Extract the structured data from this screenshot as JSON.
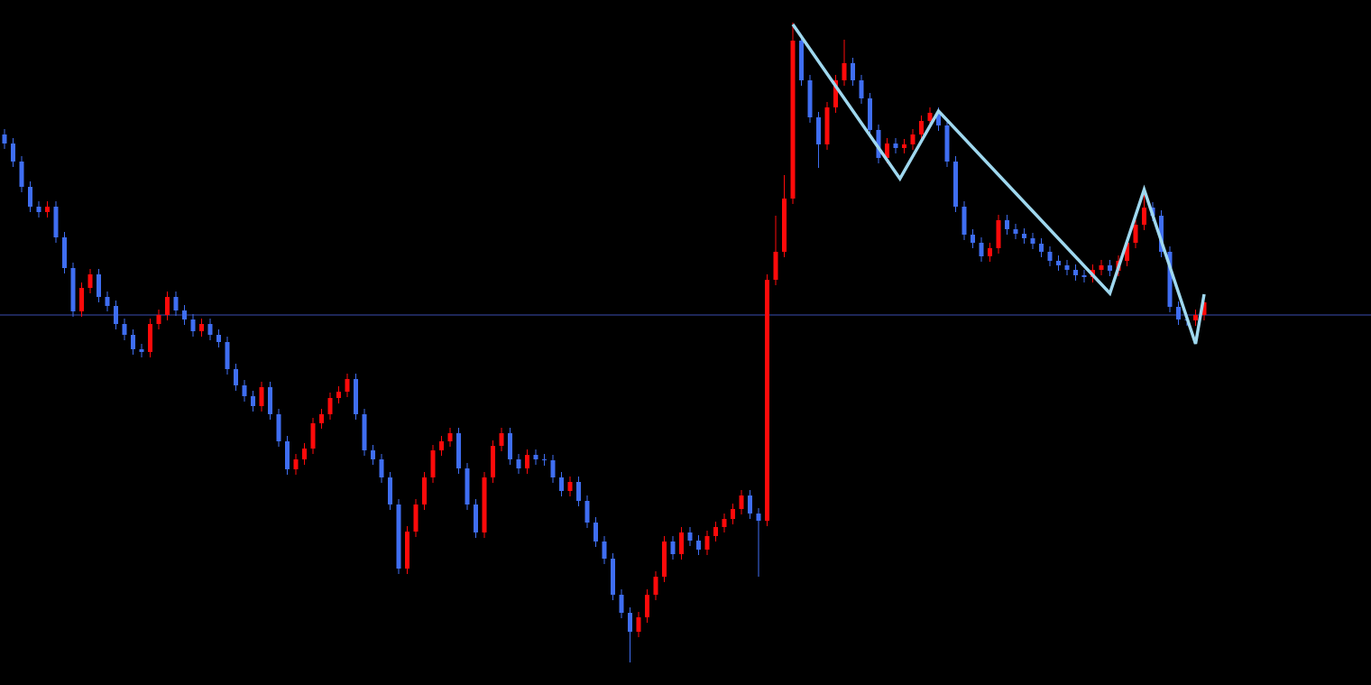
{
  "chart_data": {
    "type": "candlestick",
    "ylim": [
      0,
      759
    ],
    "up_color": "#ff0a0a",
    "down_color": "#3f6ef2",
    "categories": [
      null,
      null,
      null,
      null,
      null,
      null,
      null,
      null,
      null,
      null,
      null,
      null,
      null,
      null,
      null,
      null,
      null,
      null,
      null,
      null,
      null,
      null,
      null,
      null,
      null,
      null,
      null,
      null,
      null,
      null,
      null,
      null,
      null,
      null,
      null,
      null,
      null,
      null,
      null,
      null,
      null,
      null,
      null,
      null,
      null,
      null,
      null,
      null,
      null,
      null,
      null,
      null,
      null,
      null,
      null,
      null,
      null,
      null,
      null,
      null,
      null,
      null,
      null,
      null,
      null,
      null,
      null,
      null,
      null,
      null,
      null,
      null,
      null,
      null,
      null,
      null,
      null,
      null,
      null,
      null,
      null,
      null,
      null,
      null,
      null,
      null,
      null,
      null,
      null,
      null,
      null,
      null,
      null,
      null,
      null,
      null,
      null,
      null,
      null,
      null,
      null,
      null,
      null,
      null,
      null,
      null,
      null,
      null,
      null,
      null,
      null,
      null,
      null,
      null,
      null,
      null,
      null,
      null,
      null,
      null,
      null,
      null,
      null,
      null,
      null,
      null,
      null,
      null,
      null,
      null,
      null,
      null,
      null,
      null,
      null,
      null,
      null,
      null,
      null,
      null,
      null
    ],
    "open": [
      610,
      600,
      580,
      552,
      530,
      524,
      530,
      496,
      462,
      414,
      440,
      455,
      430,
      420,
      400,
      388,
      372,
      369,
      400,
      410,
      430,
      415,
      405,
      392,
      400,
      388,
      380,
      350,
      332,
      320,
      309,
      330,
      300,
      270,
      239,
      250,
      262,
      290,
      300,
      318,
      325,
      339,
      300,
      260,
      250,
      230,
      200,
      129,
      170,
      200,
      230,
      260,
      270,
      279,
      240,
      200,
      169,
      230,
      265,
      279,
      250,
      240,
      255,
      250,
      249,
      230,
      215,
      225,
      204,
      180,
      159,
      140,
      100,
      80,
      59,
      75,
      100,
      120,
      159,
      145,
      169,
      160,
      150,
      165,
      175,
      184,
      195,
      210,
      190,
      182,
      449,
      480,
      539,
      714,
      670,
      629,
      599,
      640,
      670,
      689,
      670,
      650,
      615,
      584,
      600,
      595,
      599,
      610,
      625,
      634,
      620,
      580,
      530,
      499,
      490,
      475,
      484,
      515,
      505,
      500,
      495,
      489,
      480,
      470,
      465,
      460,
      454,
      452,
      460,
      465,
      459,
      470,
      490,
      510,
      529,
      520,
      480,
      419,
      405,
      404,
      410
    ],
    "high": [
      616,
      606,
      586,
      558,
      536,
      536,
      536,
      502,
      468,
      446,
      461,
      461,
      436,
      426,
      406,
      394,
      378,
      406,
      416,
      436,
      436,
      421,
      411,
      406,
      406,
      394,
      386,
      356,
      338,
      326,
      336,
      336,
      306,
      276,
      256,
      268,
      296,
      306,
      324,
      331,
      345,
      345,
      306,
      266,
      256,
      236,
      206,
      176,
      206,
      236,
      266,
      276,
      285,
      285,
      246,
      206,
      236,
      271,
      285,
      285,
      256,
      261,
      261,
      256,
      255,
      236,
      231,
      231,
      210,
      186,
      165,
      146,
      106,
      86,
      81,
      106,
      126,
      165,
      165,
      175,
      175,
      166,
      171,
      181,
      190,
      201,
      216,
      216,
      196,
      455,
      520,
      565,
      734,
      720,
      676,
      635,
      646,
      676,
      715,
      695,
      676,
      656,
      621,
      606,
      606,
      605,
      616,
      631,
      640,
      640,
      626,
      586,
      536,
      505,
      496,
      490,
      521,
      521,
      511,
      506,
      501,
      495,
      486,
      476,
      471,
      466,
      460,
      466,
      471,
      471,
      476,
      496,
      516,
      545,
      535,
      526,
      486,
      425,
      411,
      416,
      430
    ],
    "low": [
      594,
      574,
      546,
      524,
      518,
      518,
      490,
      456,
      408,
      408,
      434,
      424,
      414,
      394,
      382,
      366,
      363,
      363,
      394,
      404,
      409,
      399,
      386,
      386,
      382,
      374,
      344,
      326,
      314,
      303,
      303,
      294,
      264,
      233,
      233,
      244,
      256,
      284,
      294,
      312,
      319,
      294,
      254,
      244,
      224,
      194,
      123,
      123,
      164,
      194,
      224,
      254,
      264,
      234,
      194,
      163,
      163,
      224,
      259,
      244,
      234,
      234,
      244,
      243,
      224,
      209,
      209,
      198,
      174,
      153,
      134,
      94,
      74,
      25,
      53,
      69,
      94,
      114,
      139,
      139,
      154,
      144,
      144,
      159,
      169,
      178,
      189,
      184,
      120,
      176,
      443,
      474,
      533,
      664,
      623,
      573,
      593,
      634,
      664,
      664,
      644,
      609,
      578,
      578,
      589,
      589,
      593,
      604,
      619,
      614,
      574,
      524,
      493,
      484,
      469,
      469,
      478,
      499,
      494,
      489,
      483,
      474,
      464,
      459,
      454,
      448,
      446,
      446,
      454,
      453,
      453,
      464,
      484,
      504,
      514,
      474,
      413,
      399,
      398,
      398,
      404
    ],
    "close": [
      600,
      580,
      552,
      530,
      524,
      530,
      496,
      462,
      414,
      440,
      455,
      430,
      420,
      400,
      388,
      372,
      369,
      400,
      410,
      430,
      415,
      405,
      392,
      400,
      388,
      380,
      350,
      332,
      320,
      309,
      330,
      300,
      270,
      239,
      250,
      262,
      290,
      300,
      318,
      325,
      339,
      300,
      260,
      250,
      230,
      200,
      129,
      170,
      200,
      230,
      260,
      270,
      279,
      240,
      200,
      169,
      230,
      265,
      279,
      250,
      240,
      255,
      250,
      249,
      230,
      215,
      225,
      204,
      180,
      159,
      140,
      100,
      80,
      59,
      75,
      100,
      120,
      159,
      145,
      169,
      160,
      150,
      165,
      175,
      184,
      195,
      210,
      190,
      182,
      449,
      480,
      539,
      714,
      670,
      629,
      599,
      640,
      670,
      689,
      670,
      650,
      615,
      584,
      600,
      595,
      599,
      610,
      625,
      634,
      620,
      580,
      530,
      499,
      490,
      475,
      484,
      515,
      505,
      500,
      495,
      489,
      480,
      470,
      465,
      460,
      454,
      452,
      460,
      465,
      459,
      470,
      490,
      510,
      529,
      520,
      480,
      419,
      405,
      404,
      410,
      424
    ],
    "hline": {
      "value": 410,
      "color": "#3a4bb0"
    },
    "zigzag": {
      "color": "#9fd8ef",
      "x": [
        92,
        104.5,
        109,
        129,
        133,
        139,
        140
      ],
      "values": [
        732,
        561,
        636,
        434,
        549,
        378,
        433
      ]
    }
  }
}
